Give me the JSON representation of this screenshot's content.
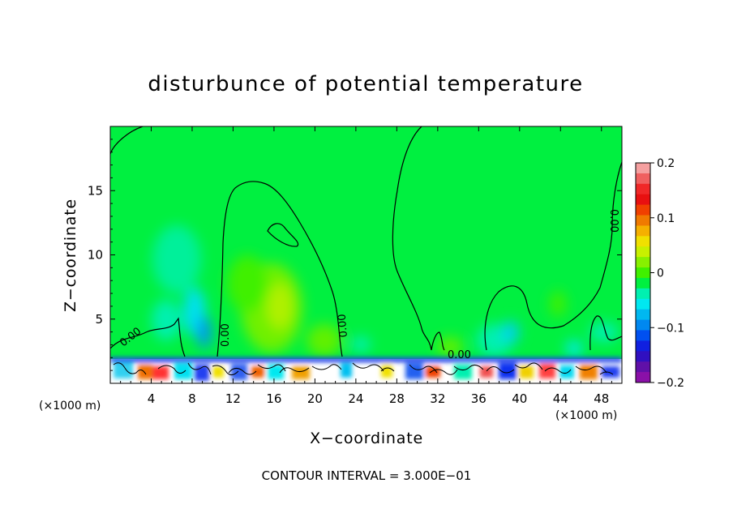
{
  "chart_data": {
    "type": "heatmap",
    "title": "disturbunce of potential temperature",
    "xlabel": "X−coordinate",
    "ylabel": "Z−coordinate",
    "x_unit": "(×1000 m)",
    "xlim": [
      0,
      50
    ],
    "ylim": [
      0,
      20
    ],
    "x_ticks": [
      4,
      8,
      12,
      16,
      20,
      24,
      28,
      32,
      36,
      40,
      44,
      48
    ],
    "y_ticks": [
      5,
      10,
      15
    ],
    "colorbar": {
      "min": -0.2,
      "max": 0.2,
      "ticks": [
        0.2,
        0.1,
        0,
        -0.1,
        -0.2
      ],
      "tick_labels": [
        "0.2",
        "0.1",
        "0",
        "−0.1",
        "−0.2"
      ],
      "colors": [
        "#f5a0a0",
        "#f06060",
        "#f02828",
        "#e81010",
        "#f04000",
        "#f07a00",
        "#f5b000",
        "#f0e000",
        "#c8f000",
        "#88f000",
        "#40f000",
        "#00f040",
        "#00f0b0",
        "#00e8f0",
        "#00b8f0",
        "#0088f0",
        "#0050f0",
        "#1020e0",
        "#3010c0",
        "#6010a8",
        "#8a10a8"
      ]
    },
    "contour_labels": [
      "0.00",
      "0.00",
      "0.00",
      "0.00",
      "0.00"
    ],
    "footer": "CONTOUR INTERVAL = 3.000E−01"
  }
}
